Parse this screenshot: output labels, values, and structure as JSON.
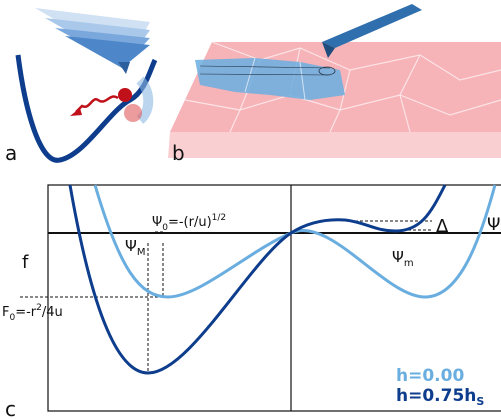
{
  "panels": {
    "a": "a",
    "b": "b",
    "c": "c"
  },
  "plot": {
    "y_label": "f",
    "x_label": "Ψ",
    "psi_M": {
      "main": "Ψ",
      "sub": "M"
    },
    "psi_m": {
      "main": "Ψ",
      "sub": "m"
    },
    "psi_0": {
      "main": "Ψ",
      "sub": "0",
      "rest": "=-(r/u)",
      "sup": "1/2"
    },
    "f_0": {
      "main": "F",
      "sub": "0",
      "rest": "=-r",
      "sup": "2",
      "tail": "/4u"
    },
    "delta": "Δ",
    "legend": [
      {
        "text": "h=0.00",
        "color": "#6aaee0"
      },
      {
        "text": "h=0.75h",
        "sub": "S",
        "color": "#0d3d8c"
      }
    ]
  }
}
